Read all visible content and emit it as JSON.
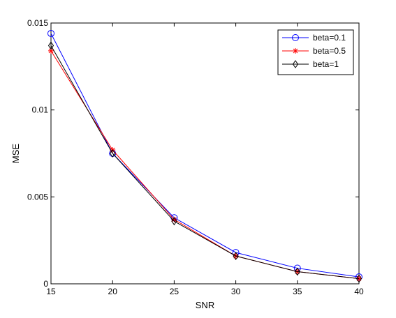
{
  "chart_data": {
    "type": "line",
    "title": "",
    "xlabel": "SNR",
    "ylabel": "MSE",
    "x": [
      15,
      20,
      25,
      30,
      35,
      40
    ],
    "xlim": [
      15,
      40
    ],
    "ylim": [
      0,
      0.015
    ],
    "xticks": [
      "15",
      "20",
      "25",
      "30",
      "35",
      "40"
    ],
    "yticks": [
      "0",
      "0.005",
      "0.01",
      "0.015"
    ],
    "grid": false,
    "legend_position": "top-right",
    "series": [
      {
        "name": "beta=0.1",
        "color": "#0000ff",
        "marker": "circle",
        "values": [
          0.0144,
          0.0075,
          0.0038,
          0.0018,
          0.0009,
          0.0004
        ]
      },
      {
        "name": "beta=0.5",
        "color": "#ff0000",
        "marker": "star",
        "values": [
          0.0134,
          0.0077,
          0.0037,
          0.0016,
          0.0007,
          0.0003
        ]
      },
      {
        "name": "beta=1",
        "color": "#000000",
        "marker": "diamond",
        "values": [
          0.0137,
          0.0075,
          0.0036,
          0.0016,
          0.0007,
          0.0003
        ]
      }
    ]
  }
}
